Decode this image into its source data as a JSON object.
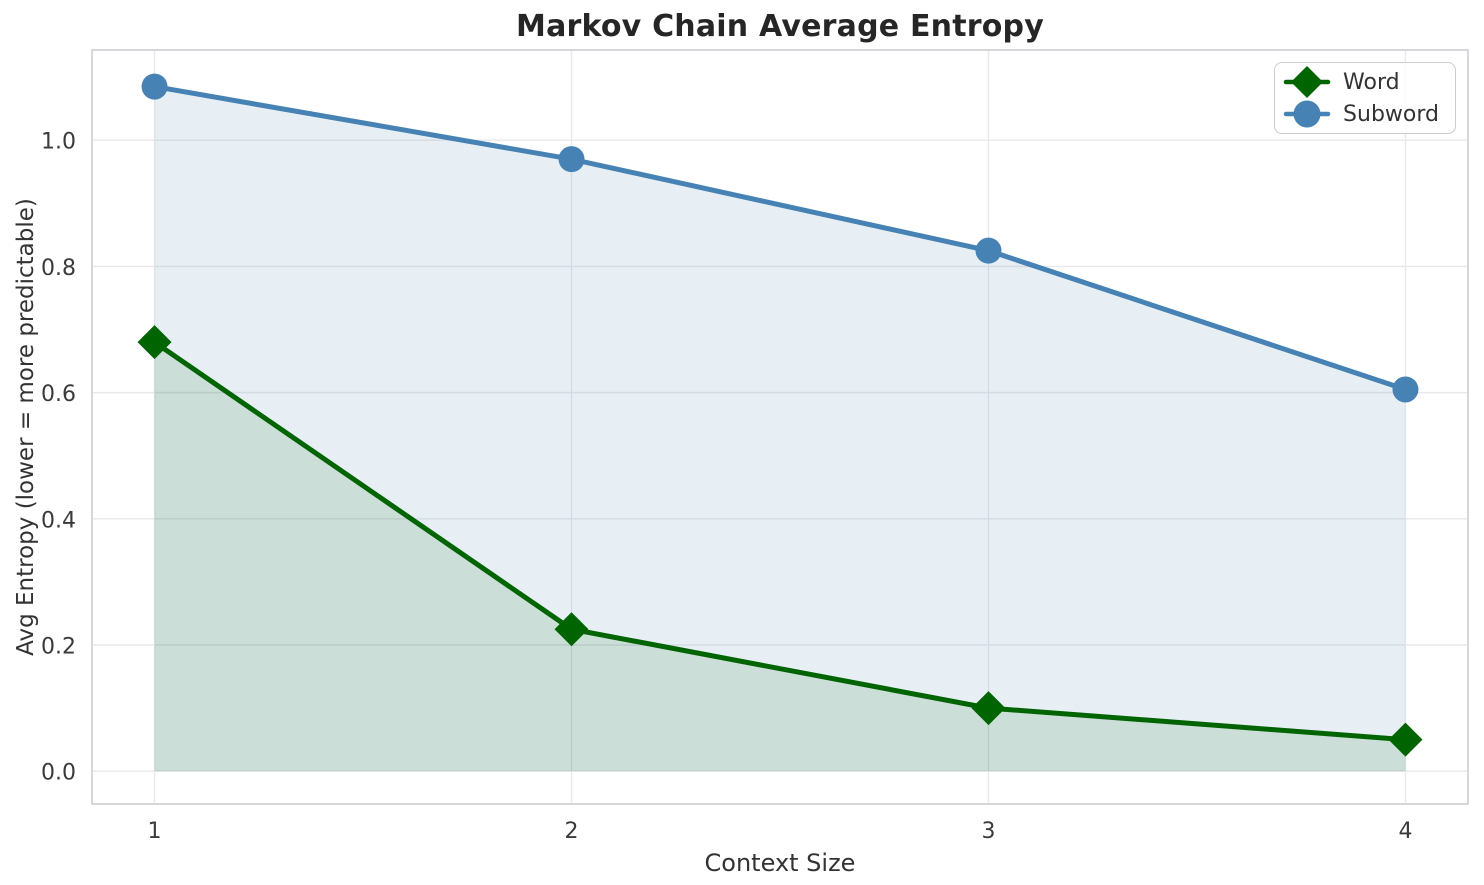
{
  "chart_data": {
    "type": "line",
    "title": "Markov Chain Average Entropy",
    "xlabel": "Context Size",
    "ylabel": "Avg Entropy (lower = more predictable)",
    "x": [
      1,
      2,
      3,
      4
    ],
    "xticks": [
      "1",
      "2",
      "3",
      "4"
    ],
    "yticks": [
      "0.0",
      "0.2",
      "0.4",
      "0.6",
      "0.8",
      "1.0"
    ],
    "ytick_values": [
      0.0,
      0.2,
      0.4,
      0.6,
      0.8,
      1.0
    ],
    "xlim": [
      0.85,
      4.15
    ],
    "ylim": [
      -0.052,
      1.143
    ],
    "grid": true,
    "legend_position": "upper right",
    "series": [
      {
        "name": "Word",
        "marker": "diamond",
        "color": "#006400",
        "fill_alpha": 0.12,
        "values": [
          0.68,
          0.225,
          0.1,
          0.05
        ]
      },
      {
        "name": "Subword",
        "marker": "circle",
        "color": "#4682B4",
        "fill_alpha": 0.13,
        "values": [
          1.085,
          0.97,
          0.825,
          0.605
        ]
      }
    ]
  }
}
